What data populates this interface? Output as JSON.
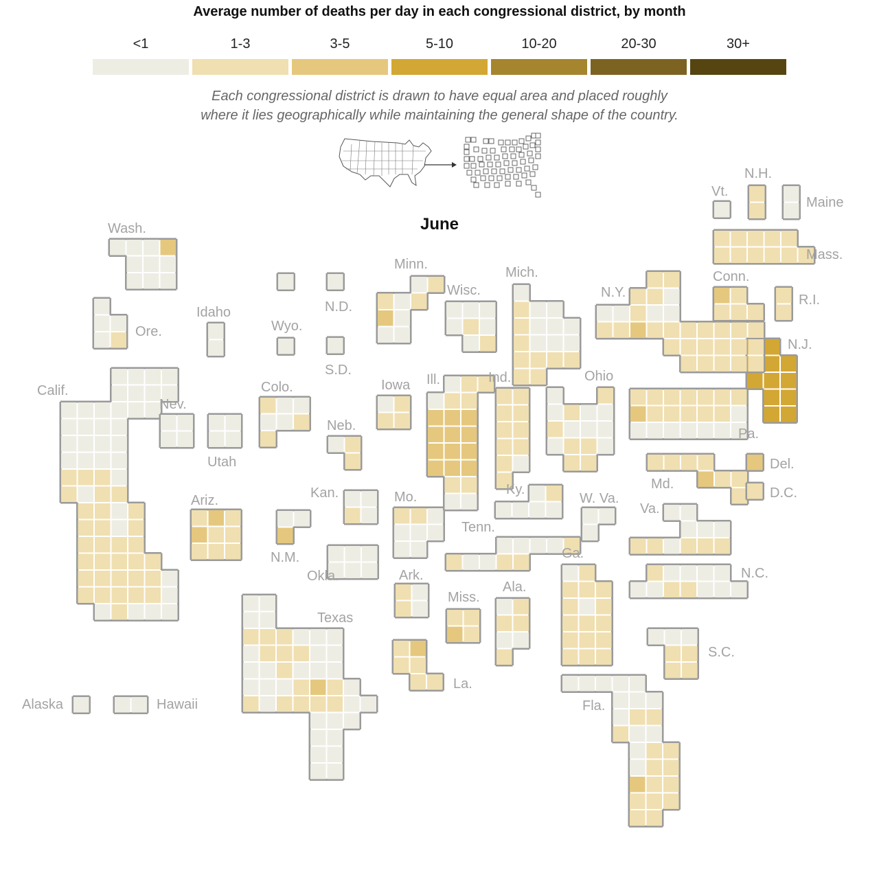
{
  "title": "Average number of deaths per day in each congressional district, by month",
  "subtitle_line1": "Each congressional district is drawn to have equal area and placed roughly",
  "subtitle_line2": "where it lies geographically while maintaining the general shape of the country.",
  "month": "June",
  "legend": {
    "bins": [
      {
        "label": "<1",
        "color": "#eeede4"
      },
      {
        "label": "1-3",
        "color": "#f0dfb0"
      },
      {
        "label": "3-5",
        "color": "#e5c87e"
      },
      {
        "label": "5-10",
        "color": "#d3a733"
      },
      {
        "label": "10-20",
        "color": "#a6852f"
      },
      {
        "label": "20-30",
        "color": "#7c6322"
      },
      {
        "label": "30+",
        "color": "#574511"
      }
    ]
  },
  "states": [
    {
      "name": "Wash."
    },
    {
      "name": "Ore."
    },
    {
      "name": "Calif."
    },
    {
      "name": "Idaho"
    },
    {
      "name": "Nev."
    },
    {
      "name": "Utah"
    },
    {
      "name": "Ariz."
    },
    {
      "name": "Wyo."
    },
    {
      "name": "Colo."
    },
    {
      "name": "N.M."
    },
    {
      "name": "N.D."
    },
    {
      "name": "S.D."
    },
    {
      "name": "Neb."
    },
    {
      "name": "Kan."
    },
    {
      "name": "Okla."
    },
    {
      "name": "Texas"
    },
    {
      "name": "Minn."
    },
    {
      "name": "Iowa"
    },
    {
      "name": "Mo."
    },
    {
      "name": "Ark."
    },
    {
      "name": "La."
    },
    {
      "name": "Wisc."
    },
    {
      "name": "Ill."
    },
    {
      "name": "Mich."
    },
    {
      "name": "Ind."
    },
    {
      "name": "Ohio"
    },
    {
      "name": "Ky."
    },
    {
      "name": "Tenn."
    },
    {
      "name": "Miss."
    },
    {
      "name": "Ala."
    },
    {
      "name": "Ga."
    },
    {
      "name": "Fla."
    },
    {
      "name": "W. Va."
    },
    {
      "name": "Va."
    },
    {
      "name": "N.C."
    },
    {
      "name": "S.C."
    },
    {
      "name": "Md."
    },
    {
      "name": "Del."
    },
    {
      "name": "D.C."
    },
    {
      "name": "Pa."
    },
    {
      "name": "N.J."
    },
    {
      "name": "N.Y."
    },
    {
      "name": "Conn."
    },
    {
      "name": "R.I."
    },
    {
      "name": "Mass."
    },
    {
      "name": "Vt."
    },
    {
      "name": "N.H."
    },
    {
      "name": "Maine"
    },
    {
      "name": "Alaska"
    },
    {
      "name": "Hawaii"
    }
  ]
}
